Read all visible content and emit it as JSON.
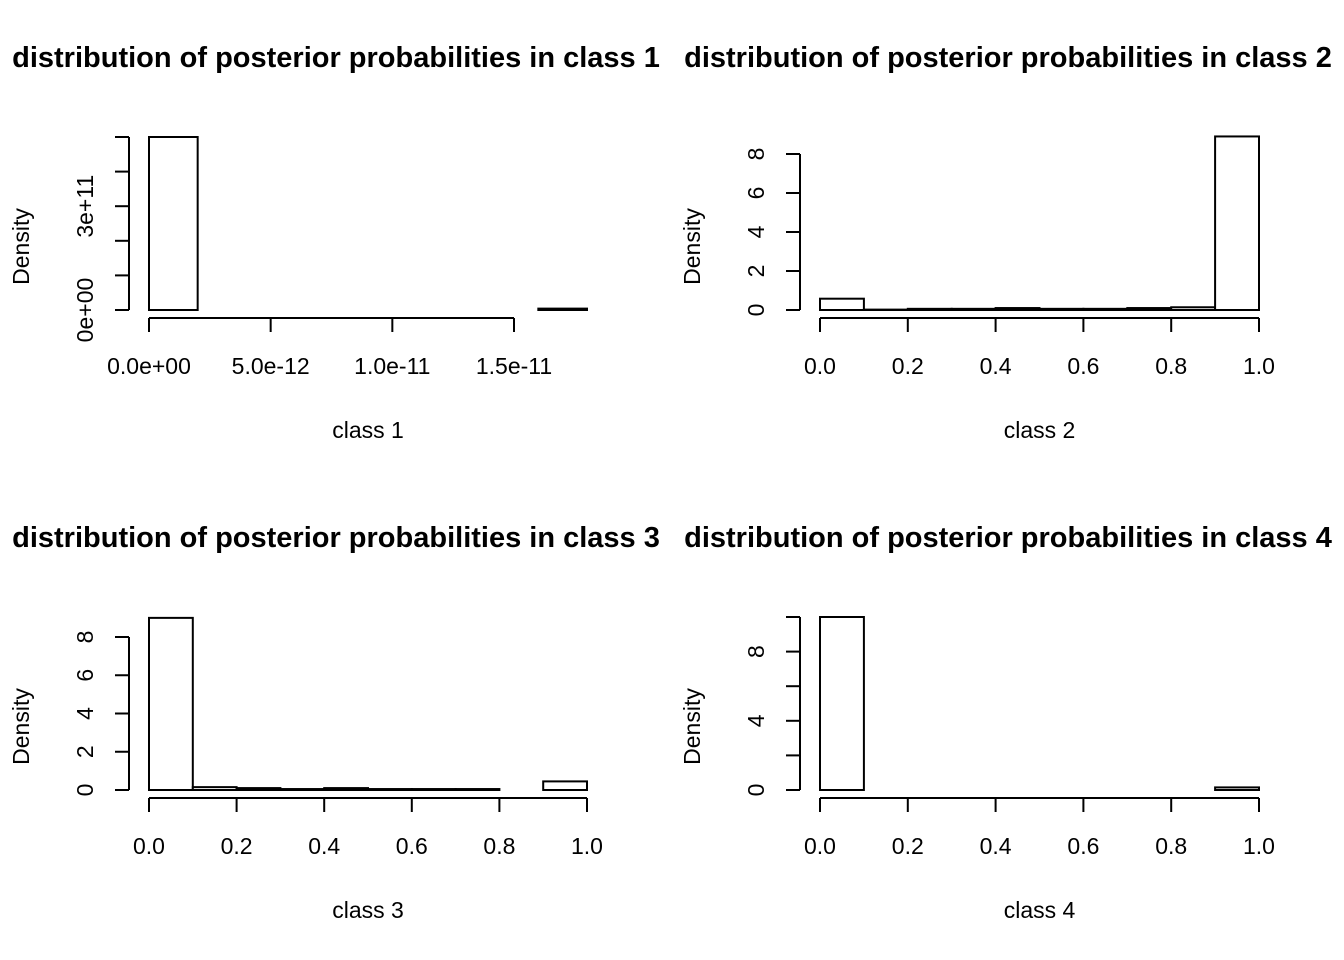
{
  "chart_data": [
    {
      "type": "bar",
      "title": "distribution of posterior probabilities in class 1",
      "xlabel": "class 1",
      "ylabel": "Density",
      "xlim": [
        0,
        1.8e-11
      ],
      "ylim": [
        0,
        500000000000.0
      ],
      "xticks": [
        0,
        5e-12,
        1e-11,
        1.5e-11
      ],
      "xtick_labels": [
        "0.0e+00",
        "5.0e-12",
        "1.0e-11",
        "1.5e-11"
      ],
      "yticks": [
        0,
        100000000000.0,
        200000000000.0,
        300000000000.0,
        400000000000.0,
        500000000000.0
      ],
      "ytick_labels": [
        "0e+00",
        "",
        "",
        "3e+11",
        "",
        ""
      ],
      "bins": [
        {
          "start": 0,
          "end": 2e-12,
          "density": 500000000000.0
        },
        {
          "start": 2e-12,
          "end": 1.6e-11,
          "density": 0
        },
        {
          "start": 1.6e-11,
          "end": 1.8e-11,
          "density": 4000000000.0
        }
      ]
    },
    {
      "type": "bar",
      "title": "distribution of posterior probabilities in class 2",
      "xlabel": "class 2",
      "ylabel": "Density",
      "xlim": [
        0,
        1
      ],
      "ylim": [
        0,
        8.9
      ],
      "xticks": [
        0,
        0.2,
        0.4,
        0.6,
        0.8,
        1.0
      ],
      "xtick_labels": [
        "0.0",
        "0.2",
        "0.4",
        "0.6",
        "0.8",
        "1.0"
      ],
      "yticks": [
        0,
        2,
        4,
        6,
        8
      ],
      "ytick_labels": [
        "0",
        "2",
        "4",
        "6",
        "8"
      ],
      "bins": [
        {
          "start": 0.0,
          "end": 0.1,
          "density": 0.58
        },
        {
          "start": 0.1,
          "end": 0.2,
          "density": 0.02
        },
        {
          "start": 0.2,
          "end": 0.3,
          "density": 0.06
        },
        {
          "start": 0.3,
          "end": 0.4,
          "density": 0.06
        },
        {
          "start": 0.4,
          "end": 0.5,
          "density": 0.1
        },
        {
          "start": 0.5,
          "end": 0.6,
          "density": 0.06
        },
        {
          "start": 0.6,
          "end": 0.7,
          "density": 0.06
        },
        {
          "start": 0.7,
          "end": 0.8,
          "density": 0.1
        },
        {
          "start": 0.8,
          "end": 0.9,
          "density": 0.14
        },
        {
          "start": 0.9,
          "end": 1.0,
          "density": 8.9
        }
      ]
    },
    {
      "type": "bar",
      "title": "distribution of posterior probabilities in class 3",
      "xlabel": "class 3",
      "ylabel": "Density",
      "xlim": [
        0,
        1
      ],
      "ylim": [
        0,
        9.0
      ],
      "xticks": [
        0,
        0.2,
        0.4,
        0.6,
        0.8,
        1.0
      ],
      "xtick_labels": [
        "0.0",
        "0.2",
        "0.4",
        "0.6",
        "0.8",
        "1.0"
      ],
      "yticks": [
        0,
        2,
        4,
        6,
        8
      ],
      "ytick_labels": [
        "0",
        "2",
        "4",
        "6",
        "8"
      ],
      "bins": [
        {
          "start": 0.0,
          "end": 0.1,
          "density": 9.0
        },
        {
          "start": 0.1,
          "end": 0.2,
          "density": 0.15
        },
        {
          "start": 0.2,
          "end": 0.3,
          "density": 0.1
        },
        {
          "start": 0.3,
          "end": 0.4,
          "density": 0.05
        },
        {
          "start": 0.4,
          "end": 0.5,
          "density": 0.1
        },
        {
          "start": 0.5,
          "end": 0.6,
          "density": 0.05
        },
        {
          "start": 0.6,
          "end": 0.7,
          "density": 0.05
        },
        {
          "start": 0.7,
          "end": 0.8,
          "density": 0.05
        },
        {
          "start": 0.8,
          "end": 0.9,
          "density": 0.0
        },
        {
          "start": 0.9,
          "end": 1.0,
          "density": 0.45
        }
      ]
    },
    {
      "type": "bar",
      "title": "distribution of posterior probabilities in class 4",
      "xlabel": "class 4",
      "ylabel": "Density",
      "xlim": [
        0,
        1
      ],
      "ylim": [
        0,
        10.0
      ],
      "xticks": [
        0,
        0.2,
        0.4,
        0.6,
        0.8,
        1.0
      ],
      "xtick_labels": [
        "0.0",
        "0.2",
        "0.4",
        "0.6",
        "0.8",
        "1.0"
      ],
      "yticks": [
        0,
        2,
        4,
        6,
        8,
        10
      ],
      "ytick_labels": [
        "0",
        "",
        "4",
        "",
        "8",
        ""
      ],
      "bins": [
        {
          "start": 0.0,
          "end": 0.1,
          "density": 10.0
        },
        {
          "start": 0.1,
          "end": 0.2,
          "density": 0.0
        },
        {
          "start": 0.2,
          "end": 0.3,
          "density": 0.0
        },
        {
          "start": 0.3,
          "end": 0.4,
          "density": 0.0
        },
        {
          "start": 0.4,
          "end": 0.5,
          "density": 0.0
        },
        {
          "start": 0.5,
          "end": 0.6,
          "density": 0.0
        },
        {
          "start": 0.6,
          "end": 0.7,
          "density": 0.0
        },
        {
          "start": 0.7,
          "end": 0.8,
          "density": 0.0
        },
        {
          "start": 0.8,
          "end": 0.9,
          "density": 0.0
        },
        {
          "start": 0.9,
          "end": 1.0,
          "density": 0.15
        }
      ]
    }
  ]
}
